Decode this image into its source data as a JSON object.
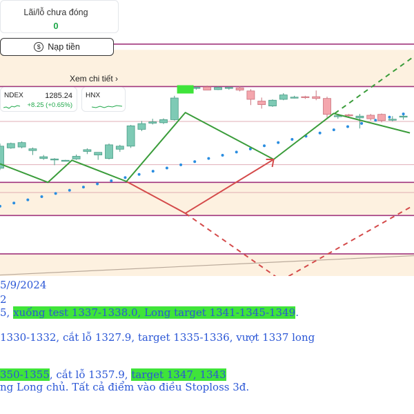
{
  "pnl_card": {
    "label": "Lãi/lỗ chưa đóng",
    "value": "0"
  },
  "deposit_button": {
    "label": "Nạp tiền",
    "icon": "dollar-circle-icon"
  },
  "detail_link": {
    "label": "Xem chi tiết ›"
  },
  "index_cards": [
    {
      "name": "NDEX",
      "value": "1285.24",
      "change": "+8.25 (+0.65%)"
    },
    {
      "name": "HNX",
      "value": "",
      "change": ""
    }
  ],
  "colors": {
    "up": "#7ecab5",
    "down": "#f4a6ad",
    "wave": "#3a9c3a",
    "projection": "#d44a4a",
    "level_line": "#a0347c",
    "zone_fill": "#fdf1e0",
    "trend_dots": "#2a8de0",
    "text": "#2a56d6",
    "highlight": "#3fe43a"
  },
  "chart_data": {
    "type": "candlestick",
    "title": "",
    "xlabel": "",
    "ylabel": "",
    "candles": [
      {
        "o": 3.0,
        "h": 8.6,
        "l": 2.6,
        "c": 8.0
      },
      {
        "o": 7.6,
        "h": 8.8,
        "l": 7.4,
        "c": 8.6
      },
      {
        "o": 7.8,
        "h": 9.1,
        "l": 7.5,
        "c": 8.8
      },
      {
        "o": 7.0,
        "h": 7.7,
        "l": 6.0,
        "c": 7.4
      },
      {
        "o": 5.2,
        "h": 6.0,
        "l": 4.9,
        "c": 5.6
      },
      {
        "o": 4.9,
        "h": 5.3,
        "l": 3.7,
        "c": 5.1
      },
      {
        "o": 4.7,
        "h": 4.9,
        "l": 4.6,
        "c": 4.8
      },
      {
        "o": 5.1,
        "h": 6.1,
        "l": 4.9,
        "c": 5.7
      },
      {
        "o": 6.8,
        "h": 7.5,
        "l": 6.2,
        "c": 7.2
      },
      {
        "o": 6.0,
        "h": 6.6,
        "l": 4.9,
        "c": 6.6
      },
      {
        "o": 5.2,
        "h": 8.6,
        "l": 5.0,
        "c": 8.3
      },
      {
        "o": 7.3,
        "h": 8.3,
        "l": 6.7,
        "c": 8.0
      },
      {
        "o": 8.0,
        "h": 12.8,
        "l": 7.6,
        "c": 12.6
      },
      {
        "o": 11.8,
        "h": 13.7,
        "l": 11.4,
        "c": 13.1
      },
      {
        "o": 13.2,
        "h": 14.2,
        "l": 12.9,
        "c": 13.5
      },
      {
        "o": 13.3,
        "h": 14.3,
        "l": 13.0,
        "c": 14.0
      },
      {
        "o": 14.0,
        "h": 19.4,
        "l": 13.8,
        "c": 18.9
      },
      {
        "o": 20.7,
        "h": 21.1,
        "l": 20.1,
        "c": 21.0
      },
      {
        "o": 21.1,
        "h": 21.6,
        "l": 20.8,
        "c": 21.3
      },
      {
        "o": 21.4,
        "h": 21.7,
        "l": 20.8,
        "c": 20.7
      },
      {
        "o": 20.8,
        "h": 21.6,
        "l": 20.7,
        "c": 21.3
      },
      {
        "o": 21.1,
        "h": 21.5,
        "l": 20.8,
        "c": 21.3
      },
      {
        "o": 21.2,
        "h": 21.6,
        "l": 20.4,
        "c": 20.7
      },
      {
        "o": 20.5,
        "h": 20.9,
        "l": 17.3,
        "c": 18.6
      },
      {
        "o": 18.2,
        "h": 19.0,
        "l": 16.5,
        "c": 17.4
      },
      {
        "o": 17.1,
        "h": 18.6,
        "l": 16.9,
        "c": 18.4
      },
      {
        "o": 18.6,
        "h": 20.0,
        "l": 18.4,
        "c": 19.6
      },
      {
        "o": 19.0,
        "h": 19.4,
        "l": 18.8,
        "c": 19.1
      },
      {
        "o": 19.2,
        "h": 19.4,
        "l": 18.7,
        "c": 19.1
      },
      {
        "o": 19.2,
        "h": 20.6,
        "l": 18.4,
        "c": 18.8
      },
      {
        "o": 18.8,
        "h": 19.2,
        "l": 14.2,
        "c": 15.2
      },
      {
        "o": 14.7,
        "h": 15.3,
        "l": 14.2,
        "c": 14.9
      },
      {
        "o": 15.1,
        "h": 15.3,
        "l": 14.5,
        "c": 14.9
      },
      {
        "o": 14.4,
        "h": 15.3,
        "l": 12.0,
        "c": 14.8
      },
      {
        "o": 15.0,
        "h": 15.3,
        "l": 13.8,
        "c": 14.2
      },
      {
        "o": 15.2,
        "h": 15.4,
        "l": 13.4,
        "c": 13.8
      },
      {
        "o": 14.0,
        "h": 14.8,
        "l": 13.6,
        "c": 14.1
      },
      {
        "o": 14.6,
        "h": 15.1,
        "l": 14.0,
        "c": 14.8
      }
    ],
    "wave_path": [
      {
        "i": 0,
        "v": 4.0
      },
      {
        "i": 4.4,
        "v": -0.2
      },
      {
        "i": 6.6,
        "v": 4.8
      },
      {
        "i": 11.6,
        "v": 0.0
      },
      {
        "i": 17.0,
        "v": 15.6
      },
      {
        "i": 25.1,
        "v": 5.0
      },
      {
        "i": 30.6,
        "v": 15.4
      },
      {
        "i": 37.6,
        "v": 11.0
      }
    ],
    "dashed_green": [
      {
        "i": 30.7,
        "v": 15.4
      },
      {
        "i": 37.8,
        "v": 28.0
      }
    ],
    "projection_path": [
      {
        "i": 11.6,
        "v": 0.0
      },
      {
        "i": 17.0,
        "v": -7.2
      },
      {
        "i": 25.1,
        "v": 5.0
      }
    ],
    "projection_dashed": [
      {
        "i": 17.0,
        "v": -7.2
      },
      {
        "i": 25.8,
        "v": -22.4
      },
      {
        "i": 37.8,
        "v": -5.6
      }
    ],
    "trend_dots": {
      "start": {
        "i": 0.0,
        "v": -5.6
      },
      "end": {
        "i": 37.0,
        "v": 15.3
      },
      "count": 30
    },
    "levels": [
      {
        "v": 31.1,
        "color": "level_line"
      },
      {
        "v": 21.5,
        "color": "level_line"
      },
      {
        "v": -0.2,
        "color": "level_line"
      },
      {
        "v": -7.7,
        "color": "level_line"
      },
      {
        "v": -16.4,
        "color": "level_line"
      },
      {
        "v": -22.7,
        "color": "level_line"
      },
      {
        "v": 13.6,
        "color": "faint"
      },
      {
        "v": 3.8,
        "color": "faint"
      },
      {
        "v": -2.5,
        "color": "faint"
      }
    ],
    "zones": [
      {
        "from": 21.5,
        "to": 29.8
      },
      {
        "from": -7.7,
        "to": -0.2
      },
      {
        "from": -22.7,
        "to": -16.4
      }
    ],
    "trendline": {
      "from": {
        "i": -1,
        "v": -21.3
      },
      "to": {
        "i": 38,
        "v": -16.8
      }
    },
    "marker": {
      "i": 17.0,
      "v": 20.7
    }
  },
  "notes": {
    "date": "5/9/2024",
    "line2": "2",
    "line3_lead": "5, ",
    "line3_hl": "xuống test 1337-1338.0, Long target 1341-1345-1349",
    "line3_tail": ".",
    "line4": " 1330-1332, cắt lỗ 1327.9, target 1335-1336, vượt 1337 long",
    "line5_hl1": "350-1355",
    "line5_mid": ", cắt lỗ 1357.9, ",
    "line5_hl2": "target 1347, 1343",
    "line6": "ng Long chủ. Tất cả điểm vào điều Stoploss 3đ."
  }
}
